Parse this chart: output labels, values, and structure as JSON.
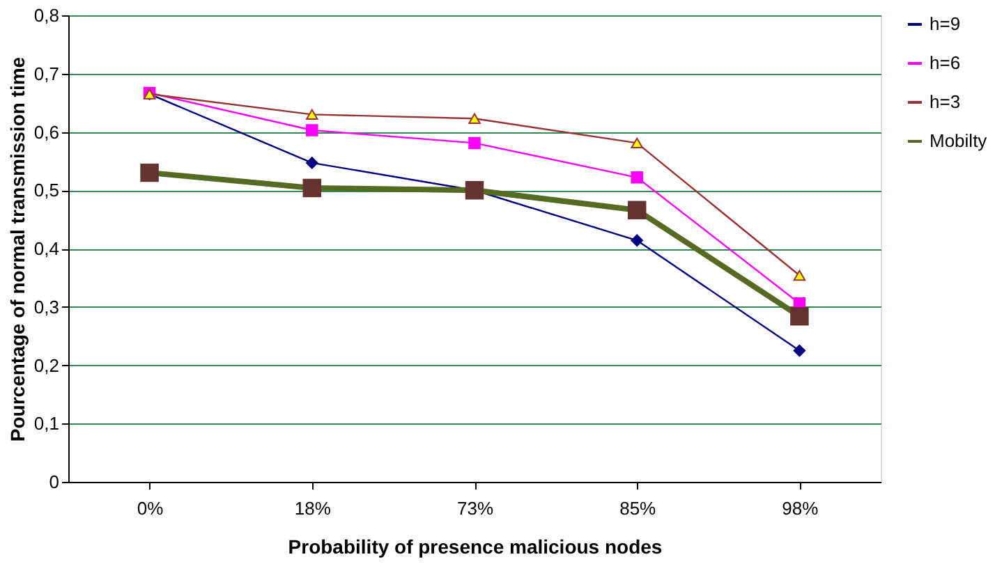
{
  "chart_data": {
    "type": "line",
    "xlabel": "Probability of  presence malicious nodes",
    "ylabel": "Pourcentage of normal transmission time",
    "categories": [
      "0%",
      "18%",
      "73%",
      "85%",
      "98%"
    ],
    "series": [
      {
        "name": "h=9",
        "color": "#000080",
        "marker": "diamond",
        "values": [
          0.665,
          0.547,
          0.5,
          0.414,
          0.225
        ]
      },
      {
        "name": "h=6",
        "color": "#ff00ff",
        "marker": "square",
        "values": [
          0.667,
          0.603,
          0.581,
          0.522,
          0.306
        ]
      },
      {
        "name": "h=3",
        "color": "#993333",
        "marker": "triangle",
        "values": [
          0.665,
          0.63,
          0.623,
          0.581,
          0.354
        ]
      },
      {
        "name": "Mobilty",
        "color": "#556b22",
        "marker": "square",
        "values": [
          0.53,
          0.504,
          0.5,
          0.466,
          0.284
        ]
      }
    ],
    "ylim": [
      0,
      0.8
    ],
    "yticks": [
      {
        "value": 0,
        "label": "0"
      },
      {
        "value": 0.1,
        "label": "0,1"
      },
      {
        "value": 0.2,
        "label": "0,2"
      },
      {
        "value": 0.3,
        "label": "0,3"
      },
      {
        "value": 0.4,
        "label": "0,4"
      },
      {
        "value": 0.5,
        "label": "0,5"
      },
      {
        "value": 0.6,
        "label": "0,6"
      },
      {
        "value": 0.7,
        "label": "0,7"
      },
      {
        "value": 0.8,
        "label": "0,8"
      }
    ],
    "grid": "y",
    "legend": "right",
    "line_style": "solid"
  }
}
